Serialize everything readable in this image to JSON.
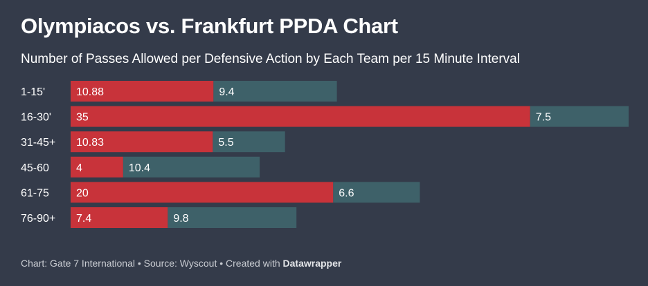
{
  "title": "Olympiacos vs. Frankfurt PPDA Chart",
  "subtitle": "Number of Passes Allowed per Defensive Action by Each Team per 15 Minute Interval",
  "footer": {
    "prefix": "Chart: Gate 7 International • Source: Wyscout • Created with ",
    "brand": "Datawrapper"
  },
  "colors": {
    "background": "#343b4a",
    "olympiacos": "#c8333a",
    "frankfurt": "#3e6169"
  },
  "chart_data": {
    "type": "bar",
    "orientation": "horizontal",
    "stacked": true,
    "categories": [
      "1-15'",
      "16-30'",
      "31-45+",
      "45-60",
      "61-75",
      "76-90+"
    ],
    "series": [
      {
        "values": [
          10.88,
          35,
          10.83,
          4,
          20,
          7.4
        ]
      },
      {
        "values": [
          9.4,
          7.5,
          5.5,
          10.4,
          6.6,
          9.8
        ]
      }
    ]
  }
}
